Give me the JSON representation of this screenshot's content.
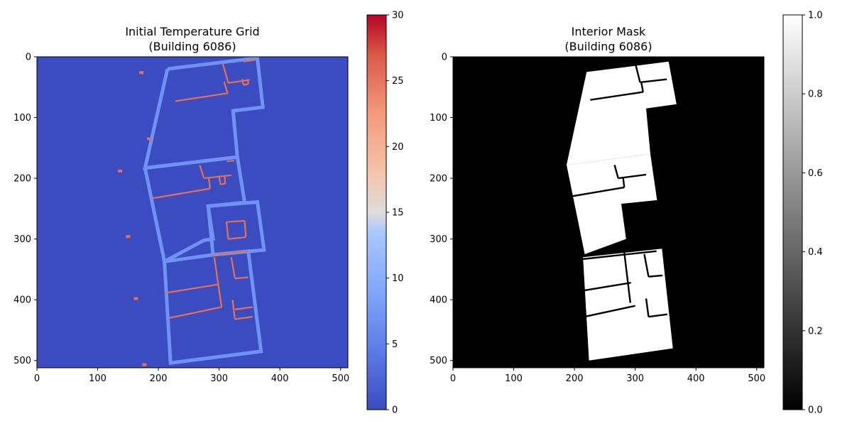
{
  "chart_data": [
    {
      "type": "heatmap",
      "title": [
        "Initial Temperature Grid",
        "(Building 6086)"
      ],
      "grid_size": [
        512,
        512
      ],
      "xlim": [
        0,
        512
      ],
      "ylim": [
        512,
        0
      ],
      "xticks": [
        0,
        100,
        200,
        300,
        400,
        500
      ],
      "yticks": [
        0,
        100,
        200,
        300,
        400,
        500
      ],
      "colormap": "coolwarm",
      "colorbar": {
        "range": [
          0,
          30
        ],
        "ticks": [
          0,
          5,
          10,
          15,
          20,
          25,
          30
        ]
      },
      "colors": {
        "background": "#3b4cc0",
        "outer_walls": "#6f92f3",
        "interior_walls": "#e57058"
      },
      "values": {
        "background": 0,
        "outer_walls": 5,
        "interior_walls": 25
      },
      "outer_wall_outlines": [
        [
          [
            215,
            20
          ],
          [
            363,
            2
          ],
          [
            372,
            83
          ],
          [
            323,
            89
          ],
          [
            330,
            165
          ],
          [
            178,
            183
          ],
          [
            215,
            20
          ]
        ],
        [
          [
            178,
            183
          ],
          [
            330,
            165
          ],
          [
            342,
            240
          ],
          [
            282,
            246
          ],
          [
            290,
            300
          ],
          [
            275,
            302
          ],
          [
            210,
            337
          ],
          [
            178,
            183
          ]
        ],
        [
          [
            282,
            246
          ],
          [
            363,
            239
          ],
          [
            374,
            318
          ],
          [
            290,
            326
          ],
          [
            282,
            246
          ]
        ],
        [
          [
            210,
            337
          ],
          [
            290,
            326
          ],
          [
            348,
            320
          ],
          [
            369,
            485
          ],
          [
            220,
            504
          ],
          [
            210,
            337
          ]
        ]
      ],
      "interior_wall_segments": [
        [
          [
            306,
            11
          ],
          [
            315,
            43
          ]
        ],
        [
          [
            315,
            43
          ],
          [
            350,
            38
          ]
        ],
        [
          [
            308,
            41
          ],
          [
            314,
            60
          ]
        ],
        [
          [
            314,
            60
          ],
          [
            228,
            73
          ]
        ],
        [
          [
            338,
            37
          ],
          [
            340,
            46
          ]
        ],
        [
          [
            340,
            46
          ],
          [
            348,
            45
          ]
        ],
        [
          [
            348,
            45
          ],
          [
            347,
            37
          ]
        ],
        [
          [
            340,
            8
          ],
          [
            360,
            5
          ]
        ],
        [
          [
            268,
            178
          ],
          [
            275,
            200
          ]
        ],
        [
          [
            275,
            200
          ],
          [
            320,
            195
          ]
        ],
        [
          [
            283,
            198
          ],
          [
            285,
            217
          ]
        ],
        [
          [
            285,
            217
          ],
          [
            190,
            233
          ]
        ],
        [
          [
            300,
            196
          ],
          [
            302,
            210
          ]
        ],
        [
          [
            302,
            210
          ],
          [
            310,
            209
          ]
        ],
        [
          [
            310,
            209
          ],
          [
            309,
            196
          ]
        ],
        [
          [
            313,
            172
          ],
          [
            325,
            171
          ]
        ],
        [
          [
            312,
            272
          ],
          [
            342,
            270
          ]
        ],
        [
          [
            342,
            270
          ],
          [
            344,
            297
          ]
        ],
        [
          [
            344,
            297
          ],
          [
            315,
            300
          ]
        ],
        [
          [
            315,
            300
          ],
          [
            312,
            272
          ]
        ],
        [
          [
            290,
            326
          ],
          [
            348,
            320
          ]
        ],
        [
          [
            292,
            330
          ],
          [
            304,
            412
          ]
        ],
        [
          [
            297,
            375
          ],
          [
            210,
            389
          ]
        ],
        [
          [
            304,
            412
          ],
          [
            218,
            430
          ]
        ],
        [
          [
            320,
            330
          ],
          [
            326,
            365
          ]
        ],
        [
          [
            326,
            365
          ],
          [
            348,
            363
          ]
        ],
        [
          [
            322,
            400
          ],
          [
            326,
            432
          ]
        ],
        [
          [
            326,
            432
          ],
          [
            355,
            428
          ]
        ],
        [
          [
            326,
            416
          ],
          [
            355,
            412
          ]
        ]
      ],
      "scattered_marks": [
        [
          172,
          26
        ],
        [
          185,
          135
        ],
        [
          137,
          188
        ],
        [
          150,
          296
        ],
        [
          163,
          398
        ],
        [
          177,
          507
        ]
      ]
    },
    {
      "type": "heatmap",
      "title": [
        "Interior Mask",
        "(Building 6086)"
      ],
      "grid_size": [
        512,
        512
      ],
      "xlim": [
        0,
        512
      ],
      "ylim": [
        512,
        0
      ],
      "xticks": [
        0,
        100,
        200,
        300,
        400,
        500
      ],
      "yticks": [
        0,
        100,
        200,
        300,
        400,
        500
      ],
      "colormap": "gray",
      "colorbar": {
        "range": [
          0.0,
          1.0
        ],
        "ticks": [
          "0.0",
          "0.2",
          "0.4",
          "0.6",
          "0.8",
          "1.0"
        ]
      },
      "colors": {
        "exterior": "#000000",
        "interior": "#ffffff"
      },
      "values": {
        "exterior": 0.0,
        "interior": 1.0
      },
      "interior_regions": [
        [
          [
            220,
            25
          ],
          [
            355,
            8
          ],
          [
            368,
            78
          ],
          [
            318,
            85
          ],
          [
            325,
            160
          ],
          [
            187,
            178
          ],
          [
            220,
            25
          ]
        ],
        [
          [
            187,
            178
          ],
          [
            325,
            160
          ],
          [
            336,
            236
          ],
          [
            277,
            242
          ],
          [
            285,
            300
          ],
          [
            217,
            325
          ],
          [
            187,
            178
          ]
        ],
        [
          [
            214,
            330
          ],
          [
            344,
            316
          ],
          [
            362,
            480
          ],
          [
            224,
            500
          ],
          [
            214,
            330
          ]
        ]
      ],
      "interior_edges": [
        [
          [
            300,
            10
          ],
          [
            308,
            42
          ]
        ],
        [
          [
            308,
            42
          ],
          [
            352,
            37
          ]
        ],
        [
          [
            310,
            42
          ],
          [
            313,
            58
          ]
        ],
        [
          [
            313,
            58
          ],
          [
            226,
            71
          ]
        ],
        [
          [
            266,
            178
          ],
          [
            272,
            200
          ]
        ],
        [
          [
            272,
            200
          ],
          [
            318,
            194
          ]
        ],
        [
          [
            280,
            198
          ],
          [
            282,
            215
          ]
        ],
        [
          [
            282,
            215
          ],
          [
            188,
            231
          ]
        ],
        [
          [
            214,
            333
          ],
          [
            335,
            320
          ]
        ],
        [
          [
            282,
            322
          ],
          [
            292,
            405
          ]
        ],
        [
          [
            293,
            372
          ],
          [
            208,
            386
          ]
        ],
        [
          [
            300,
            410
          ],
          [
            216,
            428
          ]
        ],
        [
          [
            315,
            325
          ],
          [
            322,
            362
          ]
        ],
        [
          [
            322,
            362
          ],
          [
            345,
            360
          ]
        ],
        [
          [
            318,
            398
          ],
          [
            322,
            428
          ]
        ],
        [
          [
            322,
            428
          ],
          [
            353,
            424
          ]
        ]
      ]
    }
  ]
}
